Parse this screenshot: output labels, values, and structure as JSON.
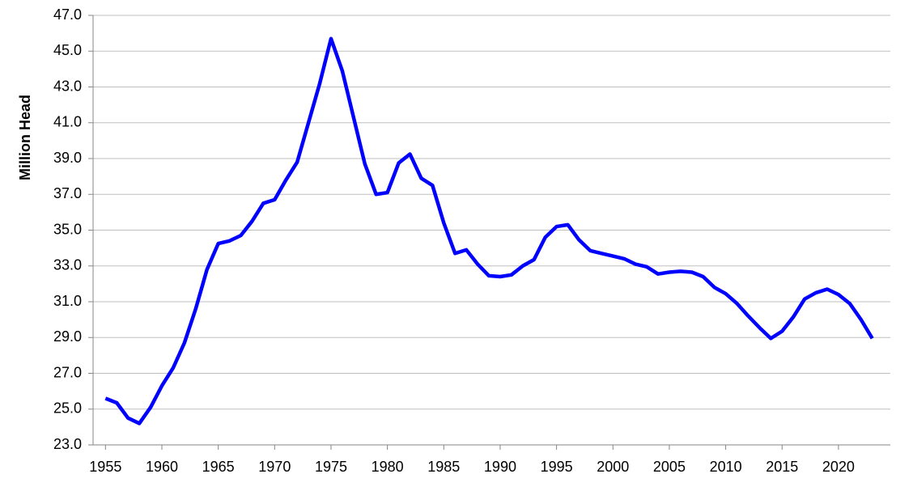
{
  "chart_data": {
    "type": "line",
    "y_label": "Million Head",
    "x": [
      1955,
      1956,
      1957,
      1958,
      1959,
      1960,
      1961,
      1962,
      1963,
      1964,
      1965,
      1966,
      1967,
      1968,
      1969,
      1970,
      1971,
      1972,
      1973,
      1974,
      1975,
      1976,
      1977,
      1978,
      1979,
      1980,
      1981,
      1982,
      1983,
      1984,
      1985,
      1986,
      1987,
      1988,
      1989,
      1990,
      1991,
      1992,
      1993,
      1994,
      1995,
      1996,
      1997,
      1998,
      1999,
      2000,
      2001,
      2002,
      2003,
      2004,
      2005,
      2006,
      2007,
      2008,
      2009,
      2010,
      2011,
      2012,
      2013,
      2014,
      2015,
      2016,
      2017,
      2018,
      2019,
      2020,
      2021,
      2022,
      2023
    ],
    "series": [
      {
        "color": "#0000ff",
        "values": [
          25.6,
          25.35,
          24.5,
          24.2,
          25.1,
          26.3,
          27.3,
          28.7,
          30.6,
          32.8,
          34.25,
          34.4,
          34.7,
          35.5,
          36.5,
          36.7,
          37.8,
          38.8,
          41.0,
          43.2,
          45.7,
          43.9,
          41.3,
          38.7,
          37.0,
          37.1,
          38.75,
          39.25,
          37.9,
          37.5,
          35.4,
          33.7,
          33.9,
          33.1,
          32.45,
          32.4,
          32.5,
          33.0,
          33.35,
          34.6,
          35.2,
          35.3,
          34.45,
          33.85,
          33.7,
          33.55,
          33.4,
          33.1,
          32.95,
          32.55,
          32.65,
          32.7,
          32.65,
          32.4,
          31.8,
          31.45,
          30.9,
          30.2,
          29.55,
          28.95,
          29.35,
          30.15,
          31.15,
          31.5,
          31.7,
          31.4,
          30.9,
          30.0,
          28.95
        ]
      }
    ],
    "xlim": [
      1953.9,
      2024.6
    ],
    "xticks": [
      1955,
      1960,
      1965,
      1970,
      1975,
      1980,
      1985,
      1990,
      1995,
      2000,
      2005,
      2010,
      2015,
      2020
    ],
    "ylim": [
      23,
      47
    ],
    "yticks": [
      {
        "value": 23,
        "label": "23.0"
      },
      {
        "value": 25,
        "label": "25.0"
      },
      {
        "value": 27,
        "label": "27.0"
      },
      {
        "value": 29,
        "label": "29.0"
      },
      {
        "value": 31,
        "label": "31.0"
      },
      {
        "value": 33,
        "label": "33.0"
      },
      {
        "value": 35,
        "label": "35.0"
      },
      {
        "value": 37,
        "label": "37.0"
      },
      {
        "value": 39,
        "label": "39.0"
      },
      {
        "value": 41,
        "label": "41.0"
      },
      {
        "value": 43,
        "label": "43.0"
      },
      {
        "value": 45,
        "label": "45.0"
      },
      {
        "value": 47,
        "label": "47.0"
      }
    ],
    "grid": true
  }
}
